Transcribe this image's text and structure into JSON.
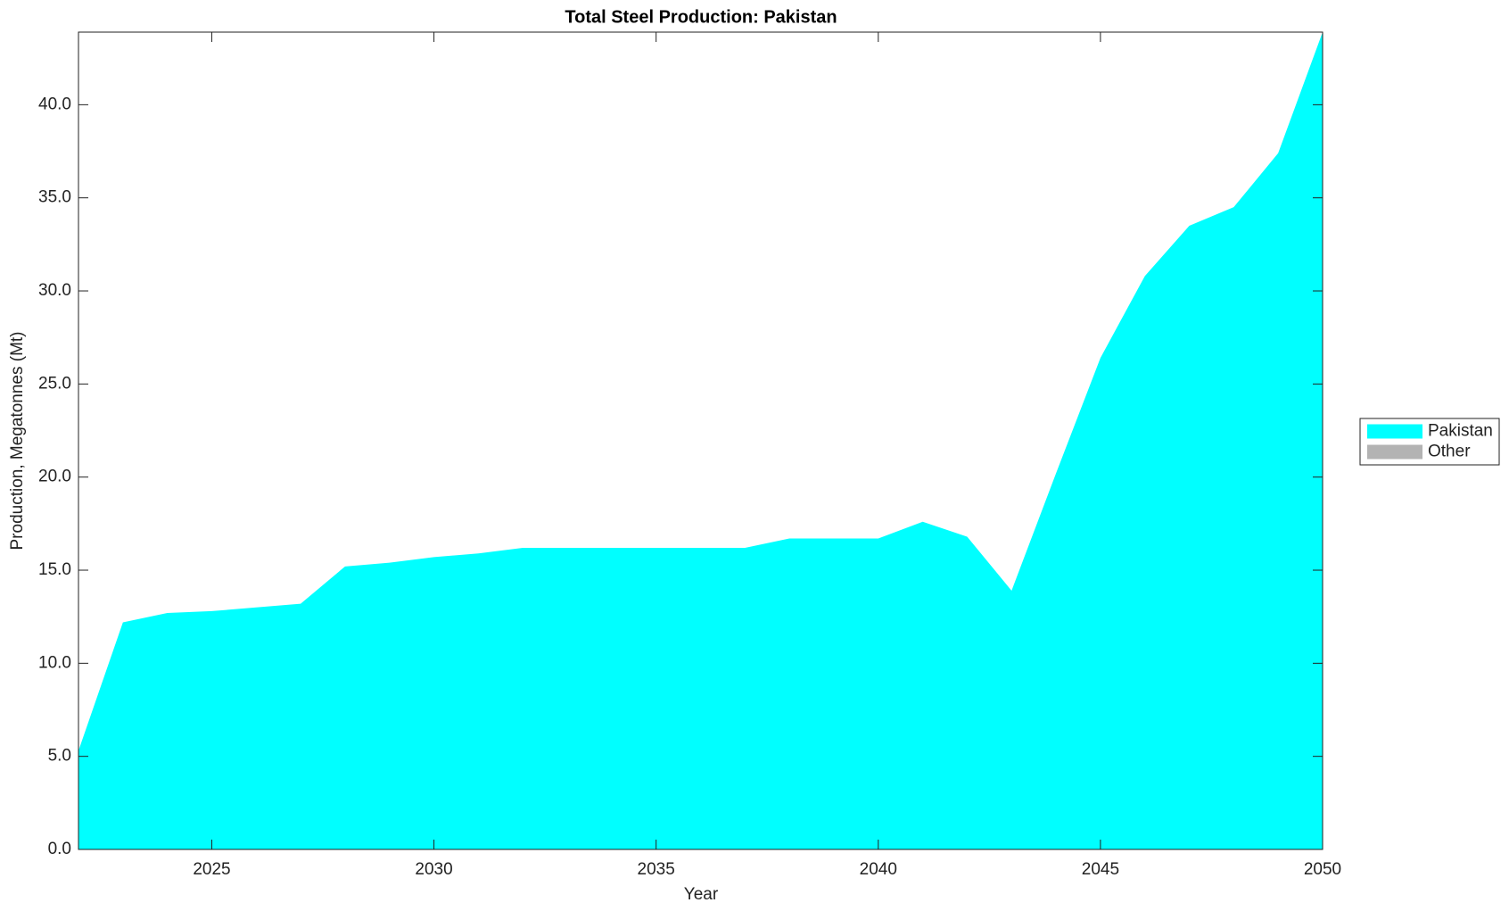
{
  "chart_data": {
    "type": "stacked-area",
    "title": "Total Steel Production: Pakistan",
    "x_label": "Year",
    "y_label": "Production, Megatonnes (Mt)",
    "x": [
      2022,
      2023,
      2024,
      2025,
      2026,
      2027,
      2028,
      2029,
      2030,
      2031,
      2032,
      2033,
      2034,
      2035,
      2036,
      2037,
      2038,
      2039,
      2040,
      2041,
      2042,
      2043,
      2044,
      2045,
      2046,
      2047,
      2048,
      2049,
      2050
    ],
    "series": [
      {
        "name": "Pakistan",
        "color": "#00ffff",
        "values": [
          5.3,
          12.2,
          12.7,
          12.8,
          13.0,
          13.2,
          15.2,
          15.4,
          15.7,
          15.9,
          16.2,
          16.2,
          16.2,
          16.2,
          16.2,
          16.2,
          16.7,
          16.7,
          16.7,
          17.6,
          16.8,
          13.9,
          20.2,
          26.4,
          30.8,
          33.5,
          34.5,
          37.4,
          43.9
        ]
      },
      {
        "name": "Other",
        "color": "#b3b3b3",
        "values": [
          0,
          0,
          0,
          0,
          0,
          0,
          0,
          0,
          0,
          0,
          0,
          0,
          0,
          0,
          0,
          0,
          0,
          0,
          0,
          0,
          0,
          0,
          0,
          0,
          0,
          0,
          0,
          0,
          0
        ]
      }
    ],
    "xlim": [
      2022,
      2050
    ],
    "xticks": [
      2025,
      2030,
      2035,
      2040,
      2045,
      2050
    ],
    "ylim": [
      0,
      43.9
    ],
    "yticks": [
      {
        "value": 0,
        "label": "0.0"
      },
      {
        "value": 5,
        "label": "5.0"
      },
      {
        "value": 10,
        "label": "10.0"
      },
      {
        "value": 15,
        "label": "15.0"
      },
      {
        "value": 20,
        "label": "20.0"
      },
      {
        "value": 25,
        "label": "25.0"
      },
      {
        "value": 30,
        "label": "30.0"
      },
      {
        "value": 35,
        "label": "35.0"
      },
      {
        "value": 40,
        "label": "40.0"
      }
    ],
    "grid": false,
    "legend": "right"
  }
}
